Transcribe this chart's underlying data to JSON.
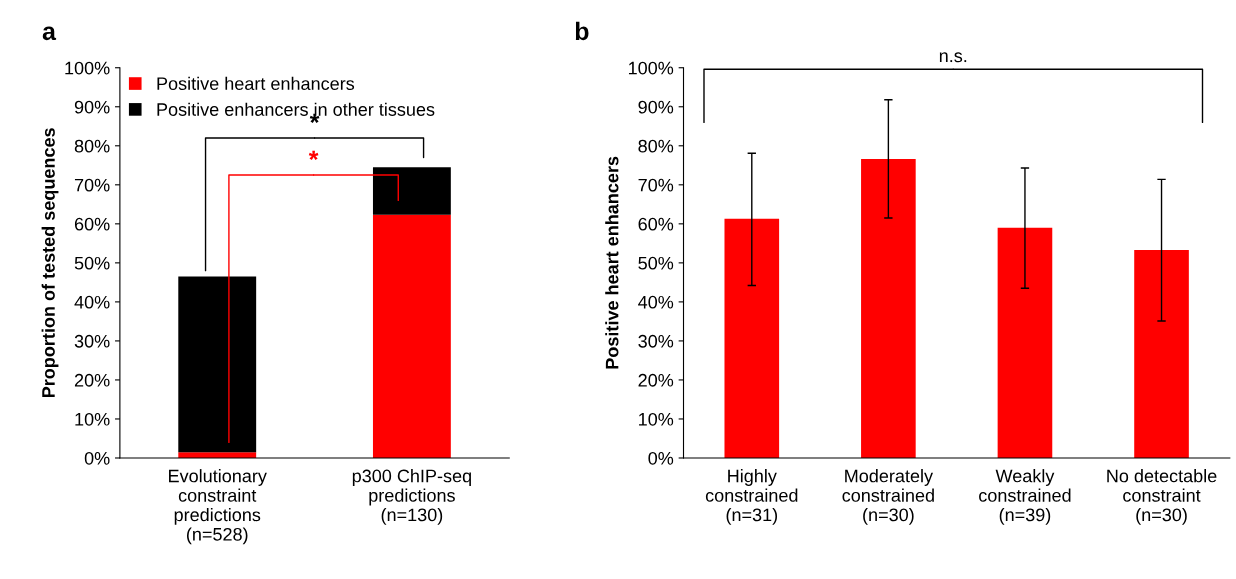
{
  "chart_data": [
    {
      "type": "bar",
      "title": "a",
      "ylabel": "Proportion of tested sequences",
      "stacked": true,
      "categories": [
        "Evolutionary\nconstraint\npredictions\n(n=528)",
        "p300 ChIP-seq\npredictions\n(n=130)"
      ],
      "series": [
        {
          "name": "Positive heart enhancers",
          "color": "#ff0000",
          "values": [
            1.5,
            62.3
          ]
        },
        {
          "name": "Positive enhancers in other tissues",
          "color": "#000000",
          "values": [
            45.0,
            12.2
          ]
        }
      ],
      "ylim": [
        0,
        100
      ],
      "yticks": [
        {
          "value": 0,
          "label": "0%"
        },
        {
          "value": 10,
          "label": "10%"
        },
        {
          "value": 20,
          "label": "20%"
        },
        {
          "value": 30,
          "label": "30%"
        },
        {
          "value": 40,
          "label": "40%"
        },
        {
          "value": 50,
          "label": "50%"
        },
        {
          "value": 60,
          "label": "60%"
        },
        {
          "value": 70,
          "label": "70%"
        },
        {
          "value": 80,
          "label": "80%"
        },
        {
          "value": 90,
          "label": "90%"
        },
        {
          "value": 100,
          "label": "100%"
        }
      ],
      "legend": "top left",
      "grid": false,
      "annotations": [
        "*",
        "*"
      ]
    },
    {
      "type": "bar",
      "title": "b",
      "ylabel": "Positive heart enhancers",
      "categories": [
        "Highly\nconstrained\n(n=31)",
        "Moderately\nconstrained\n(n=30)",
        "Weakly\nconstrained\n(n=39)",
        "No detectable\nconstraint\n(n=30)"
      ],
      "values": [
        61.3,
        76.6,
        59.0,
        53.3
      ],
      "color": "#ff0000",
      "errors": [
        [
          44.2,
          78.1
        ],
        [
          61.5,
          91.8
        ],
        [
          43.5,
          74.3
        ],
        [
          35.1,
          71.4
        ]
      ],
      "ylim": [
        0,
        100
      ],
      "yticks": [
        {
          "value": 0,
          "label": "0%"
        },
        {
          "value": 10,
          "label": "10%"
        },
        {
          "value": 20,
          "label": "20%"
        },
        {
          "value": 30,
          "label": "30%"
        },
        {
          "value": 40,
          "label": "40%"
        },
        {
          "value": 50,
          "label": "50%"
        },
        {
          "value": 60,
          "label": "60%"
        },
        {
          "value": 70,
          "label": "70%"
        },
        {
          "value": 80,
          "label": "80%"
        },
        {
          "value": 90,
          "label": "90%"
        },
        {
          "value": 100,
          "label": "100%"
        }
      ],
      "legend": false,
      "grid": false,
      "annotations": [
        "n.s."
      ]
    }
  ]
}
